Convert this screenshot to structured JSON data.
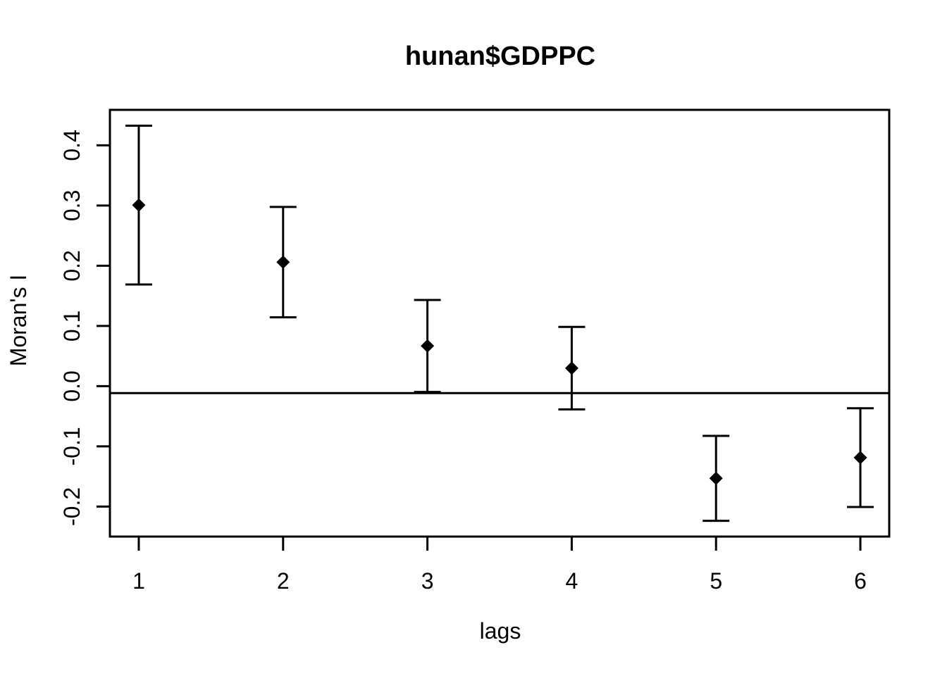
{
  "chart_data": {
    "type": "scatter",
    "subtype": "spatial-correlogram-errorbar",
    "title": "hunan$GDPPC",
    "xlabel": "lags",
    "ylabel": "Moran's  I",
    "x": [
      1,
      2,
      3,
      4,
      5,
      6
    ],
    "series": [
      {
        "name": "Moran's I estimate",
        "marker": "filled-diamond",
        "values": [
          0.3007,
          0.206,
          0.0668,
          0.0299,
          -0.153,
          -0.1187
        ],
        "error_upper": [
          0.4326,
          0.2976,
          0.1432,
          0.0984,
          -0.0825,
          -0.0367
        ],
        "error_lower": [
          0.1688,
          0.1144,
          -0.0096,
          -0.0386,
          -0.2236,
          -0.2007
        ]
      }
    ],
    "expectation_line": -0.0115,
    "xlim": [
      0.8,
      6.2
    ],
    "ylim": [
      -0.2498,
      0.4589
    ],
    "xticks": [
      1,
      2,
      3,
      4,
      5,
      6
    ],
    "xtick_labels": [
      "1",
      "2",
      "3",
      "4",
      "5",
      "6"
    ],
    "yticks": [
      0.4,
      0.3,
      0.2,
      0.1,
      0.0,
      -0.1,
      -0.2
    ],
    "ytick_labels": [
      "0.4",
      "0.3",
      "0.2",
      "0.1",
      "0.0",
      "-0.1",
      "-0.2"
    ],
    "grid": "off",
    "legend": "none",
    "colors": {
      "foreground": "#000000",
      "background": "#ffffff"
    }
  }
}
